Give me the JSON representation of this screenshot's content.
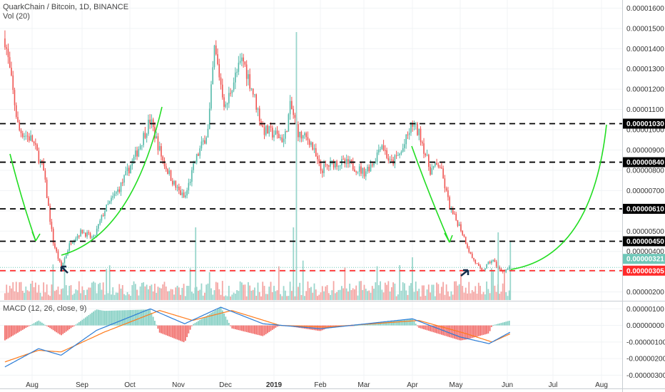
{
  "header": {
    "symbol_line": "QuarkChain / Bitcoin, 1D, BINANCE",
    "volume_label": "Vol (20)"
  },
  "chart_data": [
    {
      "type": "candlestick",
      "title": "QuarkChain / Bitcoin, 1D, BINANCE",
      "x_tick_labels": [
        "Aug",
        "Sep",
        "Oct",
        "Nov",
        "Dec",
        "2019",
        "Feb",
        "Mar",
        "Apr",
        "May",
        "Jun",
        "Jul",
        "Aug"
      ],
      "y_tick_labels": [
        "0.00000200",
        "0.00000300",
        "0.00000400",
        "0.00000500",
        "0.00000600",
        "0.00000700",
        "0.00000800",
        "0.00000900",
        "0.00001000",
        "0.00001100",
        "0.00001200",
        "0.00001300",
        "0.00001400",
        "0.00001500",
        "0.00001600"
      ],
      "ylim": [
        1.6e-06,
        1.64e-05
      ],
      "price_path": [
        {
          "x": "Jul 12",
          "y": 1.45e-05
        },
        {
          "x": "Jul 22",
          "y": 1e-05
        },
        {
          "x": "Aug 1",
          "y": 9.5e-06
        },
        {
          "x": "Aug 8",
          "y": 8e-06
        },
        {
          "x": "Aug 14",
          "y": 4.5e-06
        },
        {
          "x": "Aug 19",
          "y": 3.2e-06
        },
        {
          "x": "Aug 25",
          "y": 4.5e-06
        },
        {
          "x": "Sep 1",
          "y": 5e-06
        },
        {
          "x": "Sep 8",
          "y": 4.6e-06
        },
        {
          "x": "Sep 15",
          "y": 6e-06
        },
        {
          "x": "Sep 25",
          "y": 7.2e-06
        },
        {
          "x": "Oct 5",
          "y": 8.8e-06
        },
        {
          "x": "Oct 14",
          "y": 1.05e-05
        },
        {
          "x": "Oct 22",
          "y": 8.5e-06
        },
        {
          "x": "Oct 30",
          "y": 7.2e-06
        },
        {
          "x": "Nov 5",
          "y": 6.6e-06
        },
        {
          "x": "Nov 12",
          "y": 8.5e-06
        },
        {
          "x": "Nov 20",
          "y": 1e-05
        },
        {
          "x": "Nov 24",
          "y": 1.4e-05
        },
        {
          "x": "Dec 1",
          "y": 1.1e-05
        },
        {
          "x": "Dec 5",
          "y": 1.22e-05
        },
        {
          "x": "Dec 12",
          "y": 1.35e-05
        },
        {
          "x": "Dec 18",
          "y": 1.2e-05
        },
        {
          "x": "Dec 25",
          "y": 1e-05
        },
        {
          "x": "Jan 1",
          "y": 9.8e-06
        },
        {
          "x": "Jan 8",
          "y": 9.5e-06
        },
        {
          "x": "Jan 12",
          "y": 1.12e-05
        },
        {
          "x": "Jan 18",
          "y": 9.7e-06
        },
        {
          "x": "Jan 25",
          "y": 9.5e-06
        },
        {
          "x": "Feb 1",
          "y": 8e-06
        },
        {
          "x": "Feb 10",
          "y": 8.4e-06
        },
        {
          "x": "Feb 20",
          "y": 8.3e-06
        },
        {
          "x": "Mar 1",
          "y": 7.9e-06
        },
        {
          "x": "Mar 8",
          "y": 8.5e-06
        },
        {
          "x": "Mar 12",
          "y": 9.4e-06
        },
        {
          "x": "Mar 18",
          "y": 8.3e-06
        },
        {
          "x": "Mar 25",
          "y": 8.9e-06
        },
        {
          "x": "Apr 1",
          "y": 1.03e-05
        },
        {
          "x": "Apr 6",
          "y": 9.7e-06
        },
        {
          "x": "Apr 12",
          "y": 8e-06
        },
        {
          "x": "Apr 18",
          "y": 8.3e-06
        },
        {
          "x": "Apr 25",
          "y": 6e-06
        },
        {
          "x": "May 1",
          "y": 5.2e-06
        },
        {
          "x": "May 8",
          "y": 3.8e-06
        },
        {
          "x": "May 15",
          "y": 3e-06
        },
        {
          "x": "May 22",
          "y": 3.6e-06
        },
        {
          "x": "May 28",
          "y": 3e-06
        },
        {
          "x": "Jun 3",
          "y": 3.2e-06
        }
      ],
      "horizontal_levels": [
        {
          "label": "0.00001030",
          "y": 1.03e-05,
          "color": "#000000",
          "style": "dashed"
        },
        {
          "label": "0.00000840",
          "y": 8.4e-06,
          "color": "#000000",
          "style": "dashed"
        },
        {
          "label": "0.00000610",
          "y": 6.1e-06,
          "color": "#000000",
          "style": "dashed"
        },
        {
          "label": "0.00000450",
          "y": 4.5e-06,
          "color": "#000000",
          "style": "dashed"
        },
        {
          "label": "0.00000305",
          "y": 3.05e-06,
          "color": "#ff2a2a",
          "style": "dashed"
        }
      ],
      "last_price": {
        "label": "0.00000321",
        "y": 3.21e-06,
        "color": "#6fc7b8"
      },
      "annotations": [
        "green arrow curves",
        "black arrows"
      ]
    },
    {
      "type": "line",
      "title": "MACD (12, 26, close, 9)",
      "y_tick_labels": [
        "0.00000100",
        "0.00000000",
        "-0.00000100",
        "-0.00000200",
        "-0.00000300"
      ],
      "ylim": [
        -3.8e-06,
        1.4e-06
      ],
      "macd": [
        {
          "x": "Jul 12",
          "y": -2.5e-06
        },
        {
          "x": "Aug 5",
          "y": -1.4e-06
        },
        {
          "x": "Aug 19",
          "y": -1.8e-06
        },
        {
          "x": "Sep 10",
          "y": -3e-07
        },
        {
          "x": "Oct 14",
          "y": 1e-06
        },
        {
          "x": "Nov 5",
          "y": 1e-07
        },
        {
          "x": "Nov 28",
          "y": 1.1e-06
        },
        {
          "x": "Dec 25",
          "y": 1e-07
        },
        {
          "x": "Feb 1",
          "y": -2e-07
        },
        {
          "x": "Apr 1",
          "y": 4e-07
        },
        {
          "x": "May 1",
          "y": -7e-07
        },
        {
          "x": "May 20",
          "y": -1.1e-06
        },
        {
          "x": "Jun 3",
          "y": -4e-07
        }
      ],
      "signal": [
        {
          "x": "Jul 12",
          "y": -2.2e-06
        },
        {
          "x": "Aug 5",
          "y": -1.5e-06
        },
        {
          "x": "Aug 19",
          "y": -1.6e-06
        },
        {
          "x": "Sep 15",
          "y": -4e-07
        },
        {
          "x": "Oct 20",
          "y": 9e-07
        },
        {
          "x": "Nov 10",
          "y": 3e-07
        },
        {
          "x": "Dec 5",
          "y": 9e-07
        },
        {
          "x": "Jan 5",
          "y": 0.0
        },
        {
          "x": "Feb 5",
          "y": -1e-07
        },
        {
          "x": "Apr 5",
          "y": 3e-07
        },
        {
          "x": "May 5",
          "y": -5e-07
        },
        {
          "x": "May 22",
          "y": -1e-06
        },
        {
          "x": "Jun 3",
          "y": -5e-07
        }
      ],
      "colors": {
        "macd": "#2a7bd6",
        "signal": "#ff7a1a",
        "hist_pos": "#6fc7b8",
        "hist_neg": "#ef5350"
      }
    }
  ],
  "colors": {
    "up": "#53b9a9",
    "down": "#ef5350",
    "vol_up": "#9ad6cc",
    "vol_down": "#f4a6a4",
    "curve": "#22dd22",
    "grid": "#f0f3f5"
  }
}
